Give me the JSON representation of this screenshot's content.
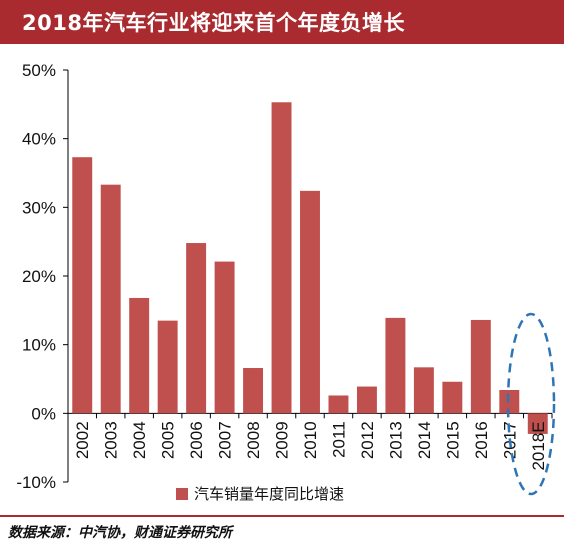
{
  "header": {
    "title": "2018年汽车行业将迎来首个年度负增长"
  },
  "footer": {
    "source": "数据来源：中汽协，财通证券研究所"
  },
  "colors": {
    "bar": "#c0504d",
    "title_bg": "#a92a2f",
    "ellipse": "#2e75b6"
  },
  "chart_data": {
    "type": "bar",
    "title": "",
    "xlabel": "",
    "ylabel": "",
    "categories": [
      "2002",
      "2003",
      "2004",
      "2005",
      "2006",
      "2007",
      "2008",
      "2009",
      "2010",
      "2011",
      "2012",
      "2013",
      "2014",
      "2015",
      "2016",
      "2017",
      "2018E"
    ],
    "series": [
      {
        "name": "汽车销量年度同比增速",
        "values": [
          37.3,
          33.3,
          16.8,
          13.5,
          24.8,
          22.1,
          6.6,
          45.3,
          32.4,
          2.6,
          3.9,
          13.9,
          6.7,
          4.6,
          13.6,
          3.4,
          -3.0
        ]
      }
    ],
    "ylim": [
      -10,
      50
    ],
    "yticks": [
      -10,
      0,
      10,
      20,
      30,
      40,
      50
    ],
    "ytick_labels": [
      "-10%",
      "0%",
      "10%",
      "20%",
      "30%",
      "40%",
      "50%"
    ],
    "highlight": "2018E",
    "legend_position": "bottom-center",
    "grid": false
  }
}
